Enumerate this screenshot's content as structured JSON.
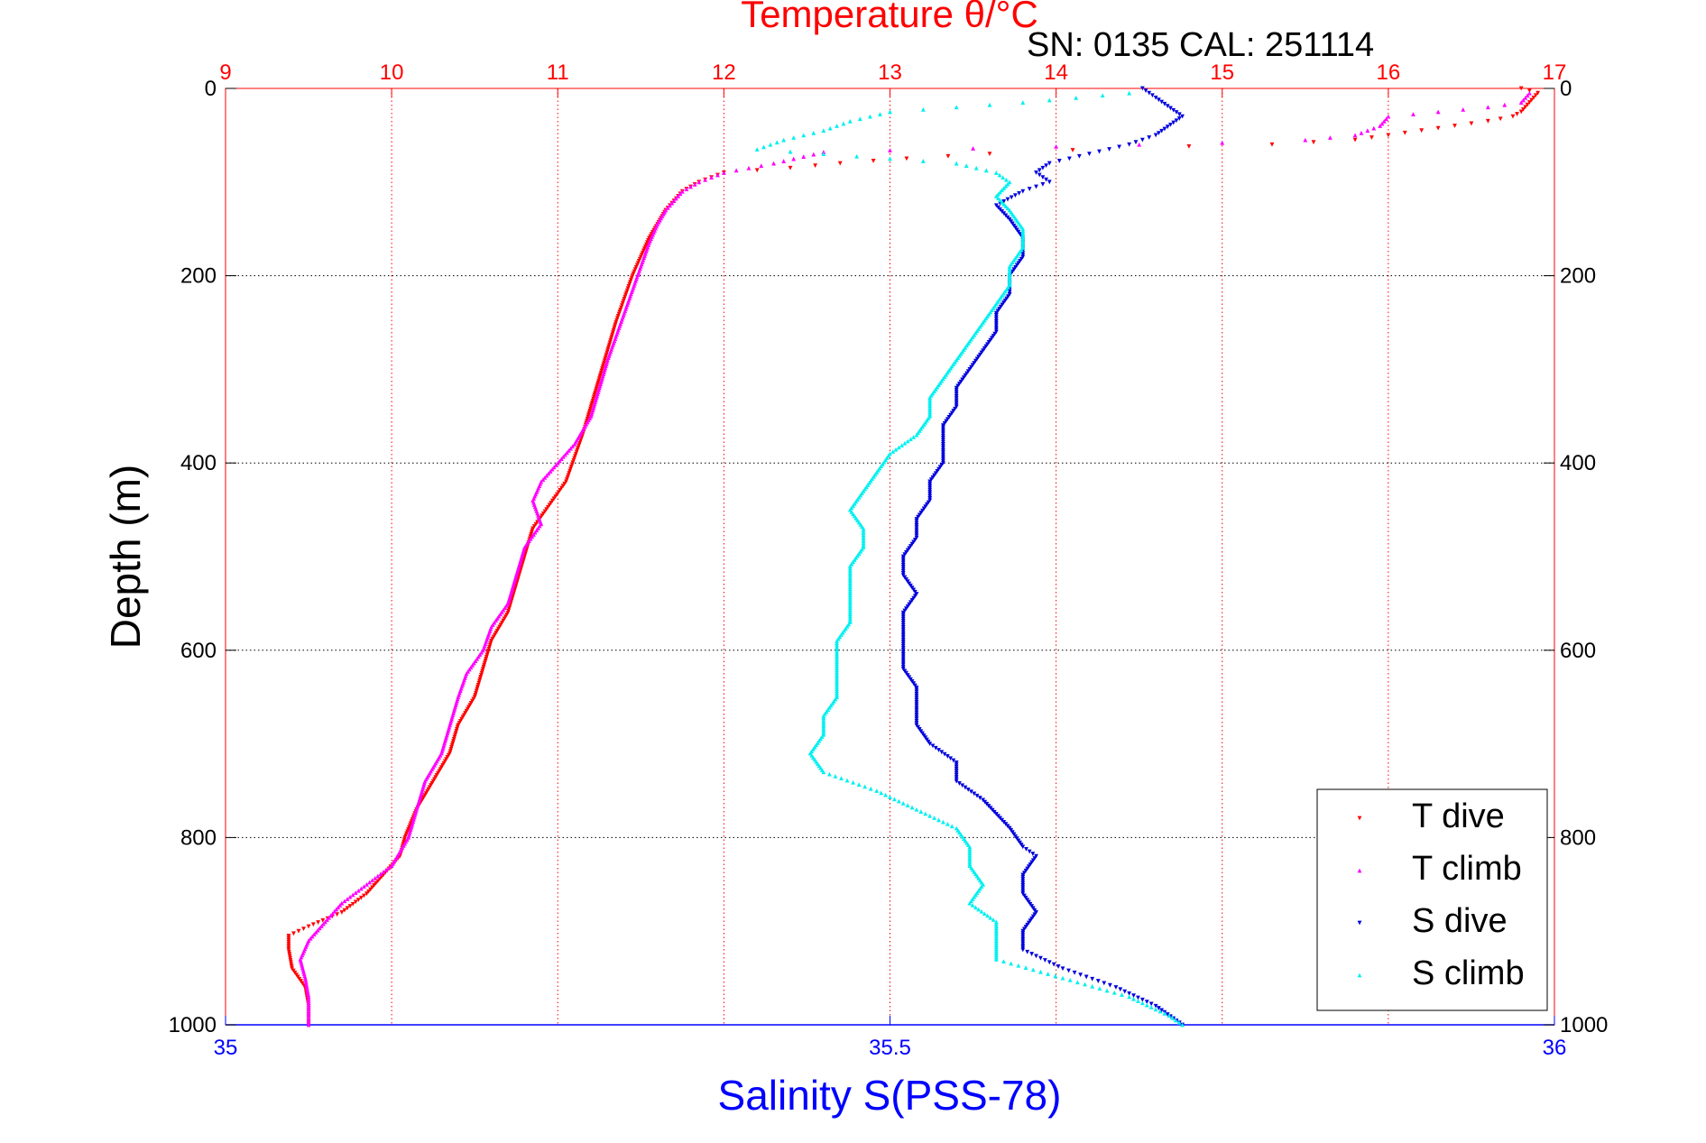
{
  "chart_data": {
    "type": "scatter",
    "title": "Temperature θ/°C",
    "subtitle": "SN: 0135  CAL: 251114",
    "ylabel": "Depth (m)",
    "xlabel": "Salinity S(PSS-78)",
    "temperature_axis": {
      "range": [
        9,
        17
      ],
      "ticks": [
        "9",
        "10",
        "11",
        "12",
        "13",
        "14",
        "15",
        "16",
        "17"
      ],
      "position": "top",
      "grid": true
    },
    "salinity_axis": {
      "range": [
        35,
        36
      ],
      "ticks": [
        "35",
        "35.5",
        "36"
      ],
      "position": "bottom",
      "grid": false
    },
    "depth_axis": {
      "range": [
        0,
        1000
      ],
      "reversed": true,
      "ticks": [
        "0",
        "200",
        "400",
        "600",
        "800",
        "1000"
      ],
      "grid": true
    },
    "legend": {
      "placement": "bottom-right",
      "entries": [
        "T dive",
        "T climb",
        "S dive",
        "S climb"
      ]
    },
    "colors": {
      "t_dive": "#ff0000",
      "t_climb": "#ff00ff",
      "s_dive": "#0000dd",
      "s_climb": "#00f0f0",
      "title": "#ff0000",
      "salinity_label": "#0000ff",
      "frame": "#ff0000",
      "bottom_axis": "#0000ff"
    },
    "series": [
      {
        "name": "T dive",
        "axis": "temperature",
        "marker": "triangle-down",
        "points": [
          [
            16.8,
            0
          ],
          [
            16.9,
            5
          ],
          [
            16.85,
            15
          ],
          [
            16.8,
            25
          ],
          [
            16.75,
            30
          ],
          [
            16.6,
            35
          ],
          [
            16.4,
            40
          ],
          [
            16.2,
            45
          ],
          [
            15.8,
            55
          ],
          [
            15.3,
            60
          ],
          [
            14.8,
            62
          ],
          [
            14.1,
            66
          ],
          [
            13.6,
            70
          ],
          [
            13.1,
            75
          ],
          [
            12.7,
            80
          ],
          [
            12.4,
            85
          ],
          [
            12.0,
            90
          ],
          [
            11.85,
            100
          ],
          [
            11.75,
            110
          ],
          [
            11.7,
            120
          ],
          [
            11.65,
            130
          ],
          [
            11.6,
            145
          ],
          [
            11.55,
            160
          ],
          [
            11.5,
            180
          ],
          [
            11.45,
            200
          ],
          [
            11.4,
            225
          ],
          [
            11.35,
            250
          ],
          [
            11.3,
            280
          ],
          [
            11.25,
            310
          ],
          [
            11.2,
            340
          ],
          [
            11.15,
            370
          ],
          [
            11.1,
            395
          ],
          [
            11.05,
            420
          ],
          [
            10.95,
            445
          ],
          [
            10.85,
            470
          ],
          [
            10.8,
            500
          ],
          [
            10.75,
            530
          ],
          [
            10.7,
            560
          ],
          [
            10.6,
            590
          ],
          [
            10.55,
            620
          ],
          [
            10.5,
            650
          ],
          [
            10.4,
            680
          ],
          [
            10.35,
            710
          ],
          [
            10.25,
            740
          ],
          [
            10.15,
            770
          ],
          [
            10.08,
            800
          ],
          [
            10.05,
            820
          ],
          [
            9.95,
            840
          ],
          [
            9.85,
            860
          ],
          [
            9.7,
            880
          ],
          [
            9.5,
            895
          ],
          [
            9.38,
            905
          ],
          [
            9.38,
            920
          ],
          [
            9.4,
            940
          ],
          [
            9.48,
            960
          ],
          [
            9.5,
            980
          ],
          [
            9.5,
            1000
          ]
        ]
      },
      {
        "name": "T climb",
        "axis": "temperature",
        "marker": "triangle-up",
        "points": [
          [
            16.85,
            5
          ],
          [
            16.8,
            15
          ],
          [
            16.6,
            20
          ],
          [
            16.3,
            25
          ],
          [
            16.0,
            30
          ],
          [
            15.95,
            40
          ],
          [
            15.8,
            50
          ],
          [
            15.5,
            55
          ],
          [
            15.0,
            58
          ],
          [
            14.5,
            60
          ],
          [
            14.0,
            62
          ],
          [
            13.5,
            64
          ],
          [
            13.0,
            66
          ],
          [
            12.6,
            68
          ],
          [
            12.3,
            80
          ],
          [
            12.0,
            90
          ],
          [
            11.85,
            100
          ],
          [
            11.75,
            110
          ],
          [
            11.7,
            120
          ],
          [
            11.65,
            130
          ],
          [
            11.6,
            145
          ],
          [
            11.55,
            165
          ],
          [
            11.5,
            190
          ],
          [
            11.45,
            215
          ],
          [
            11.4,
            240
          ],
          [
            11.35,
            265
          ],
          [
            11.3,
            290
          ],
          [
            11.25,
            320
          ],
          [
            11.2,
            350
          ],
          [
            11.1,
            380
          ],
          [
            11.0,
            400
          ],
          [
            10.9,
            420
          ],
          [
            10.85,
            440
          ],
          [
            10.9,
            465
          ],
          [
            10.8,
            490
          ],
          [
            10.75,
            520
          ],
          [
            10.7,
            550
          ],
          [
            10.6,
            575
          ],
          [
            10.55,
            600
          ],
          [
            10.45,
            625
          ],
          [
            10.4,
            650
          ],
          [
            10.35,
            680
          ],
          [
            10.3,
            710
          ],
          [
            10.2,
            740
          ],
          [
            10.15,
            770
          ],
          [
            10.1,
            800
          ],
          [
            10.0,
            830
          ],
          [
            9.85,
            850
          ],
          [
            9.7,
            870
          ],
          [
            9.6,
            890
          ],
          [
            9.5,
            910
          ],
          [
            9.45,
            930
          ],
          [
            9.48,
            950
          ],
          [
            9.5,
            970
          ],
          [
            9.5,
            990
          ],
          [
            9.5,
            1000
          ]
        ]
      },
      {
        "name": "S dive",
        "axis": "salinity",
        "marker": "triangle-down",
        "points": [
          [
            35.69,
            0
          ],
          [
            35.7,
            10
          ],
          [
            35.72,
            30
          ],
          [
            35.7,
            50
          ],
          [
            35.68,
            60
          ],
          [
            35.65,
            70
          ],
          [
            35.62,
            80
          ],
          [
            35.61,
            90
          ],
          [
            35.62,
            100
          ],
          [
            35.6,
            110
          ],
          [
            35.58,
            125
          ],
          [
            35.59,
            140
          ],
          [
            35.6,
            160
          ],
          [
            35.6,
            180
          ],
          [
            35.59,
            200
          ],
          [
            35.59,
            220
          ],
          [
            35.58,
            240
          ],
          [
            35.58,
            260
          ],
          [
            35.57,
            280
          ],
          [
            35.56,
            300
          ],
          [
            35.55,
            320
          ],
          [
            35.55,
            340
          ],
          [
            35.54,
            360
          ],
          [
            35.54,
            380
          ],
          [
            35.54,
            400
          ],
          [
            35.53,
            420
          ],
          [
            35.53,
            440
          ],
          [
            35.52,
            460
          ],
          [
            35.52,
            480
          ],
          [
            35.51,
            500
          ],
          [
            35.51,
            520
          ],
          [
            35.52,
            540
          ],
          [
            35.51,
            560
          ],
          [
            35.51,
            580
          ],
          [
            35.51,
            600
          ],
          [
            35.51,
            620
          ],
          [
            35.52,
            640
          ],
          [
            35.52,
            660
          ],
          [
            35.52,
            680
          ],
          [
            35.53,
            700
          ],
          [
            35.55,
            720
          ],
          [
            35.55,
            740
          ],
          [
            35.57,
            760
          ],
          [
            35.59,
            790
          ],
          [
            35.6,
            810
          ],
          [
            35.61,
            820
          ],
          [
            35.6,
            840
          ],
          [
            35.6,
            860
          ],
          [
            35.61,
            880
          ],
          [
            35.6,
            900
          ],
          [
            35.6,
            920
          ],
          [
            35.63,
            940
          ],
          [
            35.67,
            960
          ],
          [
            35.7,
            980
          ],
          [
            35.72,
            1000
          ]
        ]
      },
      {
        "name": "S climb",
        "axis": "salinity",
        "marker": "triangle-up",
        "points": [
          [
            35.68,
            5
          ],
          [
            35.6,
            15
          ],
          [
            35.5,
            25
          ],
          [
            35.47,
            35
          ],
          [
            35.45,
            45
          ],
          [
            35.42,
            55
          ],
          [
            35.4,
            65
          ],
          [
            35.45,
            70
          ],
          [
            35.5,
            75
          ],
          [
            35.55,
            80
          ],
          [
            35.58,
            90
          ],
          [
            35.59,
            100
          ],
          [
            35.58,
            115
          ],
          [
            35.59,
            130
          ],
          [
            35.6,
            150
          ],
          [
            35.6,
            170
          ],
          [
            35.59,
            190
          ],
          [
            35.59,
            210
          ],
          [
            35.58,
            230
          ],
          [
            35.57,
            250
          ],
          [
            35.56,
            270
          ],
          [
            35.55,
            290
          ],
          [
            35.54,
            310
          ],
          [
            35.53,
            330
          ],
          [
            35.53,
            350
          ],
          [
            35.52,
            370
          ],
          [
            35.5,
            390
          ],
          [
            35.49,
            410
          ],
          [
            35.48,
            430
          ],
          [
            35.47,
            450
          ],
          [
            35.48,
            470
          ],
          [
            35.48,
            490
          ],
          [
            35.47,
            510
          ],
          [
            35.47,
            530
          ],
          [
            35.47,
            550
          ],
          [
            35.47,
            570
          ],
          [
            35.46,
            590
          ],
          [
            35.46,
            610
          ],
          [
            35.46,
            630
          ],
          [
            35.46,
            650
          ],
          [
            35.45,
            670
          ],
          [
            35.45,
            690
          ],
          [
            35.44,
            710
          ],
          [
            35.45,
            730
          ],
          [
            35.49,
            750
          ],
          [
            35.52,
            770
          ],
          [
            35.55,
            790
          ],
          [
            35.56,
            810
          ],
          [
            35.56,
            830
          ],
          [
            35.57,
            850
          ],
          [
            35.56,
            870
          ],
          [
            35.58,
            890
          ],
          [
            35.58,
            910
          ],
          [
            35.58,
            930
          ],
          [
            35.63,
            950
          ],
          [
            35.68,
            970
          ],
          [
            35.71,
            990
          ],
          [
            35.72,
            1000
          ]
        ]
      }
    ]
  }
}
